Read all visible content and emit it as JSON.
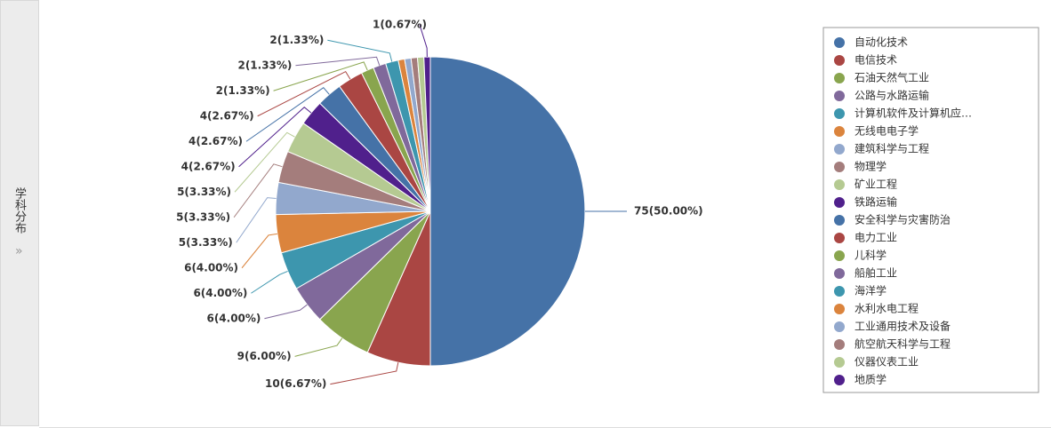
{
  "sidebar": {
    "label": "学科分布"
  },
  "chart_data": {
    "type": "pie",
    "categories": [
      "自动化技术",
      "电信技术",
      "石油天然气工业",
      "公路与水路运输",
      "计算机软件及计算机应…",
      "无线电电子学",
      "建筑科学与工程",
      "物理学",
      "矿业工程",
      "铁路运输",
      "安全科学与灾害防治",
      "电力工业",
      "儿科学",
      "船舶工业",
      "海洋学",
      "水利水电工程",
      "工业通用技术及设备",
      "航空航天科学与工程",
      "仪器仪表工业",
      "地质学"
    ],
    "values": [
      75,
      10,
      9,
      6,
      6,
      6,
      5,
      5,
      5,
      4,
      4,
      4,
      2,
      2,
      2,
      1,
      1,
      1,
      1,
      1
    ],
    "value_labels": [
      "75(50.00%)",
      "10(6.67%)",
      "9(6.00%)",
      "6(4.00%)",
      "6(4.00%)",
      "6(4.00%)",
      "5(3.33%)",
      "5(3.33%)",
      "5(3.33%)",
      "4(2.67%)",
      "4(2.67%)",
      "4(2.67%)",
      "2(1.33%)",
      "2(1.33%)",
      "2(1.33%)",
      null,
      null,
      null,
      null,
      "1(0.67%)"
    ],
    "colors": [
      "#4572A7",
      "#AA4643",
      "#89A54E",
      "#80699B",
      "#3D96AE",
      "#DB843D",
      "#92A8CD",
      "#A47D7C",
      "#B5CA92",
      "#50208C",
      "#4572A7",
      "#AA4643",
      "#89A54E",
      "#80699B",
      "#3D96AE",
      "#DB843D",
      "#92A8CD",
      "#A47D7C",
      "#B5CA92",
      "#50208C"
    ],
    "legend": "right"
  }
}
